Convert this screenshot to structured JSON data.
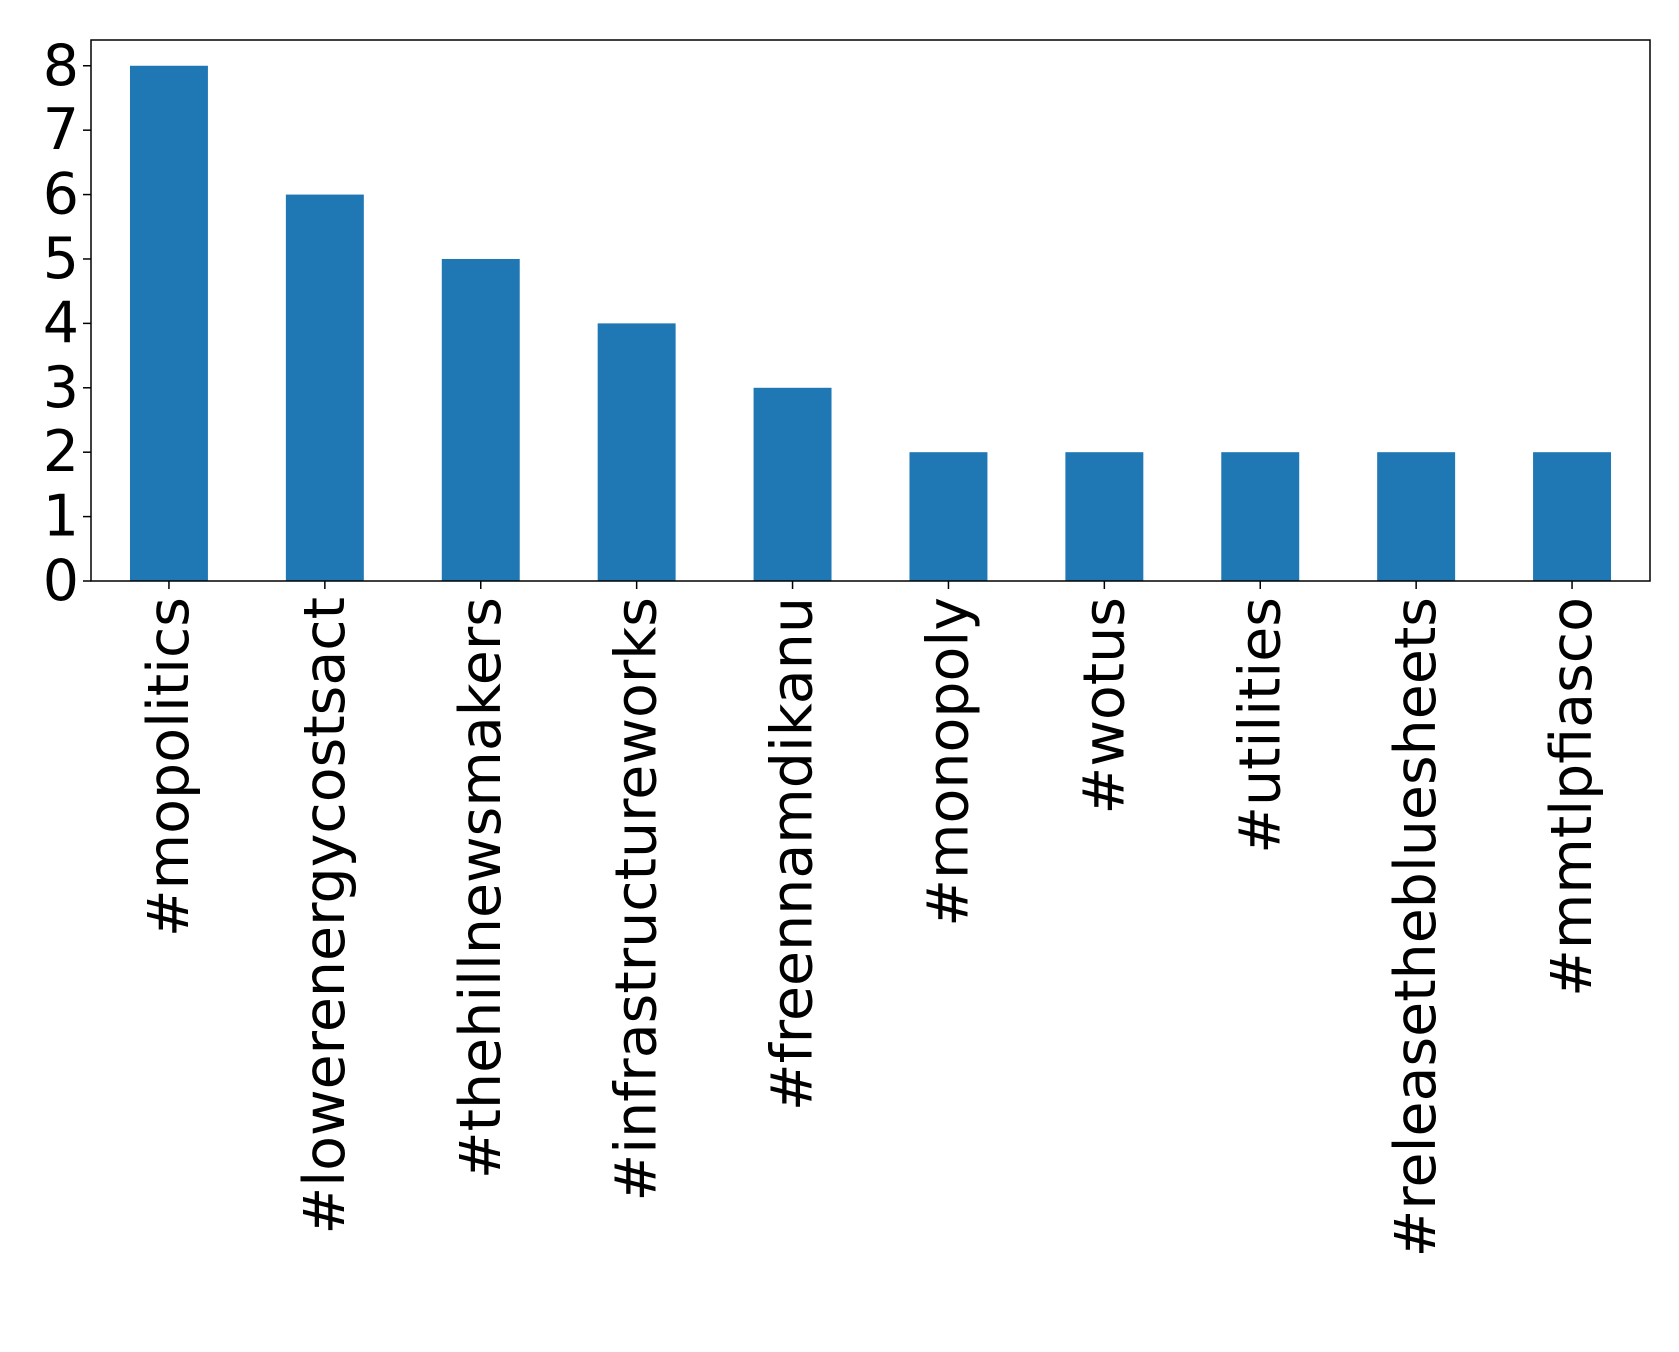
{
  "chart_data": {
    "type": "bar",
    "categories": [
      "#mopolitics",
      "#lowerenergycostsact",
      "#thehillnewsmakers",
      "#infrastructureworks",
      "#freennamdikanu",
      "#monopoly",
      "#wotus",
      "#utilities",
      "#releasethebluesheets",
      "#mmtlpfiasco"
    ],
    "values": [
      8,
      6,
      5,
      4,
      3,
      2,
      2,
      2,
      2,
      2
    ],
    "title": "",
    "xlabel": "",
    "ylabel": "",
    "ylim": [
      0,
      8.4
    ],
    "yticks": [
      0,
      1,
      2,
      3,
      4,
      5,
      6,
      7,
      8
    ],
    "grid": false,
    "bar_color": "#1f77b4"
  }
}
